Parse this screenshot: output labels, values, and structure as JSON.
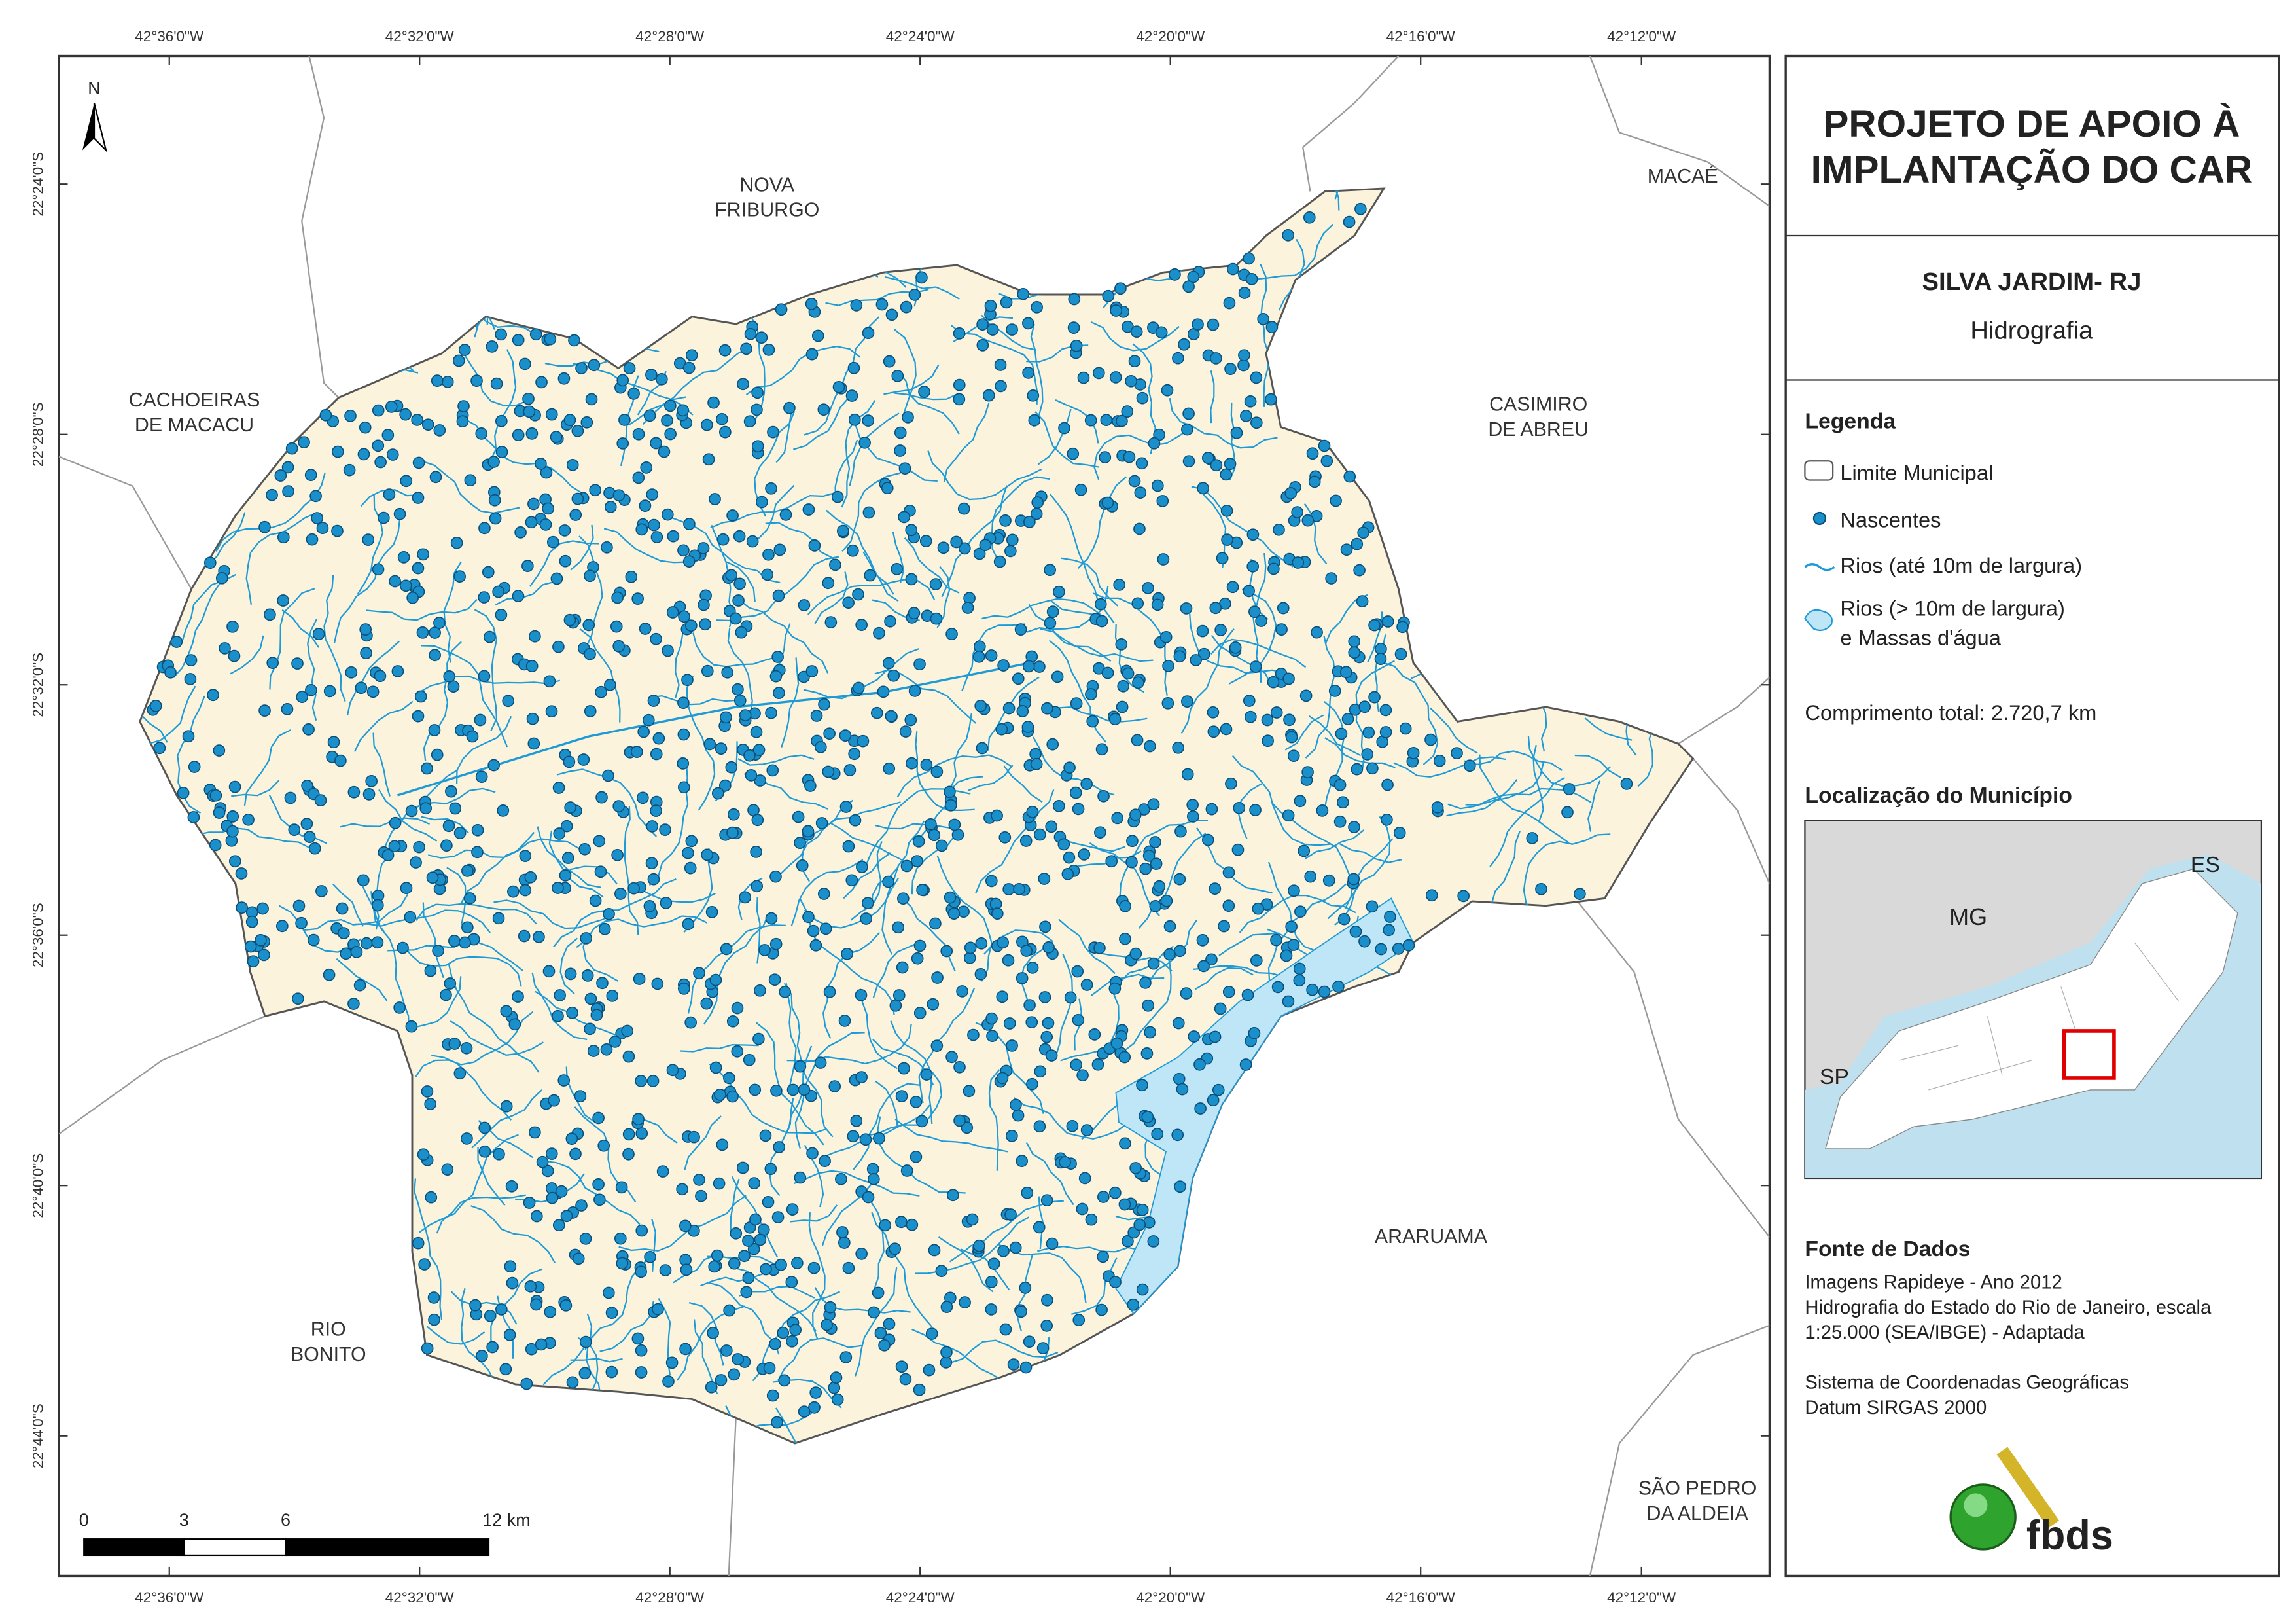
{
  "map": {
    "lon_labels": [
      "42°36'0\"W",
      "42°32'0\"W",
      "42°28'0\"W",
      "42°24'0\"W",
      "42°20'0\"W",
      "42°16'0\"W",
      "42°12'0\"W"
    ],
    "lat_labels": [
      "22°24'0\"S",
      "22°28'0\"S",
      "22°32'0\"S",
      "22°36'0\"S",
      "22°40'0\"S",
      "22°44'0\"S"
    ],
    "north": "N",
    "places": [
      {
        "lines": [
          "NOVA",
          "FRIBURGO"
        ]
      },
      {
        "lines": [
          "MACAÉ"
        ]
      },
      {
        "lines": [
          "CACHOEIRAS",
          "DE MACACU"
        ]
      },
      {
        "lines": [
          "CASIMIRO",
          "DE ABREU"
        ]
      },
      {
        "lines": [
          "ARARUAMA"
        ]
      },
      {
        "lines": [
          "RIO",
          "BONITO"
        ]
      },
      {
        "lines": [
          "SÃO PEDRO",
          "DA ALDEIA"
        ]
      }
    ],
    "scale_bar": [
      "0",
      "3",
      "6",
      "12 km"
    ]
  },
  "panel": {
    "title": [
      "PROJETO DE APOIO À",
      "IMPLANTAÇÃO DO CAR"
    ],
    "subtitle": "SILVA JARDIM- RJ",
    "theme": "Hidrografia",
    "legend": {
      "title": "Legenda",
      "items": [
        "Limite Municipal",
        "Nascentes",
        "Rios (até 10m de largura)",
        [
          "Rios (> 10m de largura)",
          "e Massas d'água"
        ]
      ]
    },
    "total_length": "Comprimento total: 2.720,7 km",
    "location": {
      "title": "Localização do Município",
      "labels": [
        "MG",
        "ES",
        "SP"
      ]
    },
    "sources": {
      "title": "Fonte de Dados",
      "lines": [
        "Imagens Rapideye - Ano 2012",
        "Hidrografia do Estado do Rio de Janeiro, escala",
        "1:25.000 (SEA/IBGE) - Adaptada",
        "",
        "Sistema de Coordenadas Geográficas",
        "Datum SIRGAS 2000"
      ]
    },
    "logo": "fbds"
  }
}
